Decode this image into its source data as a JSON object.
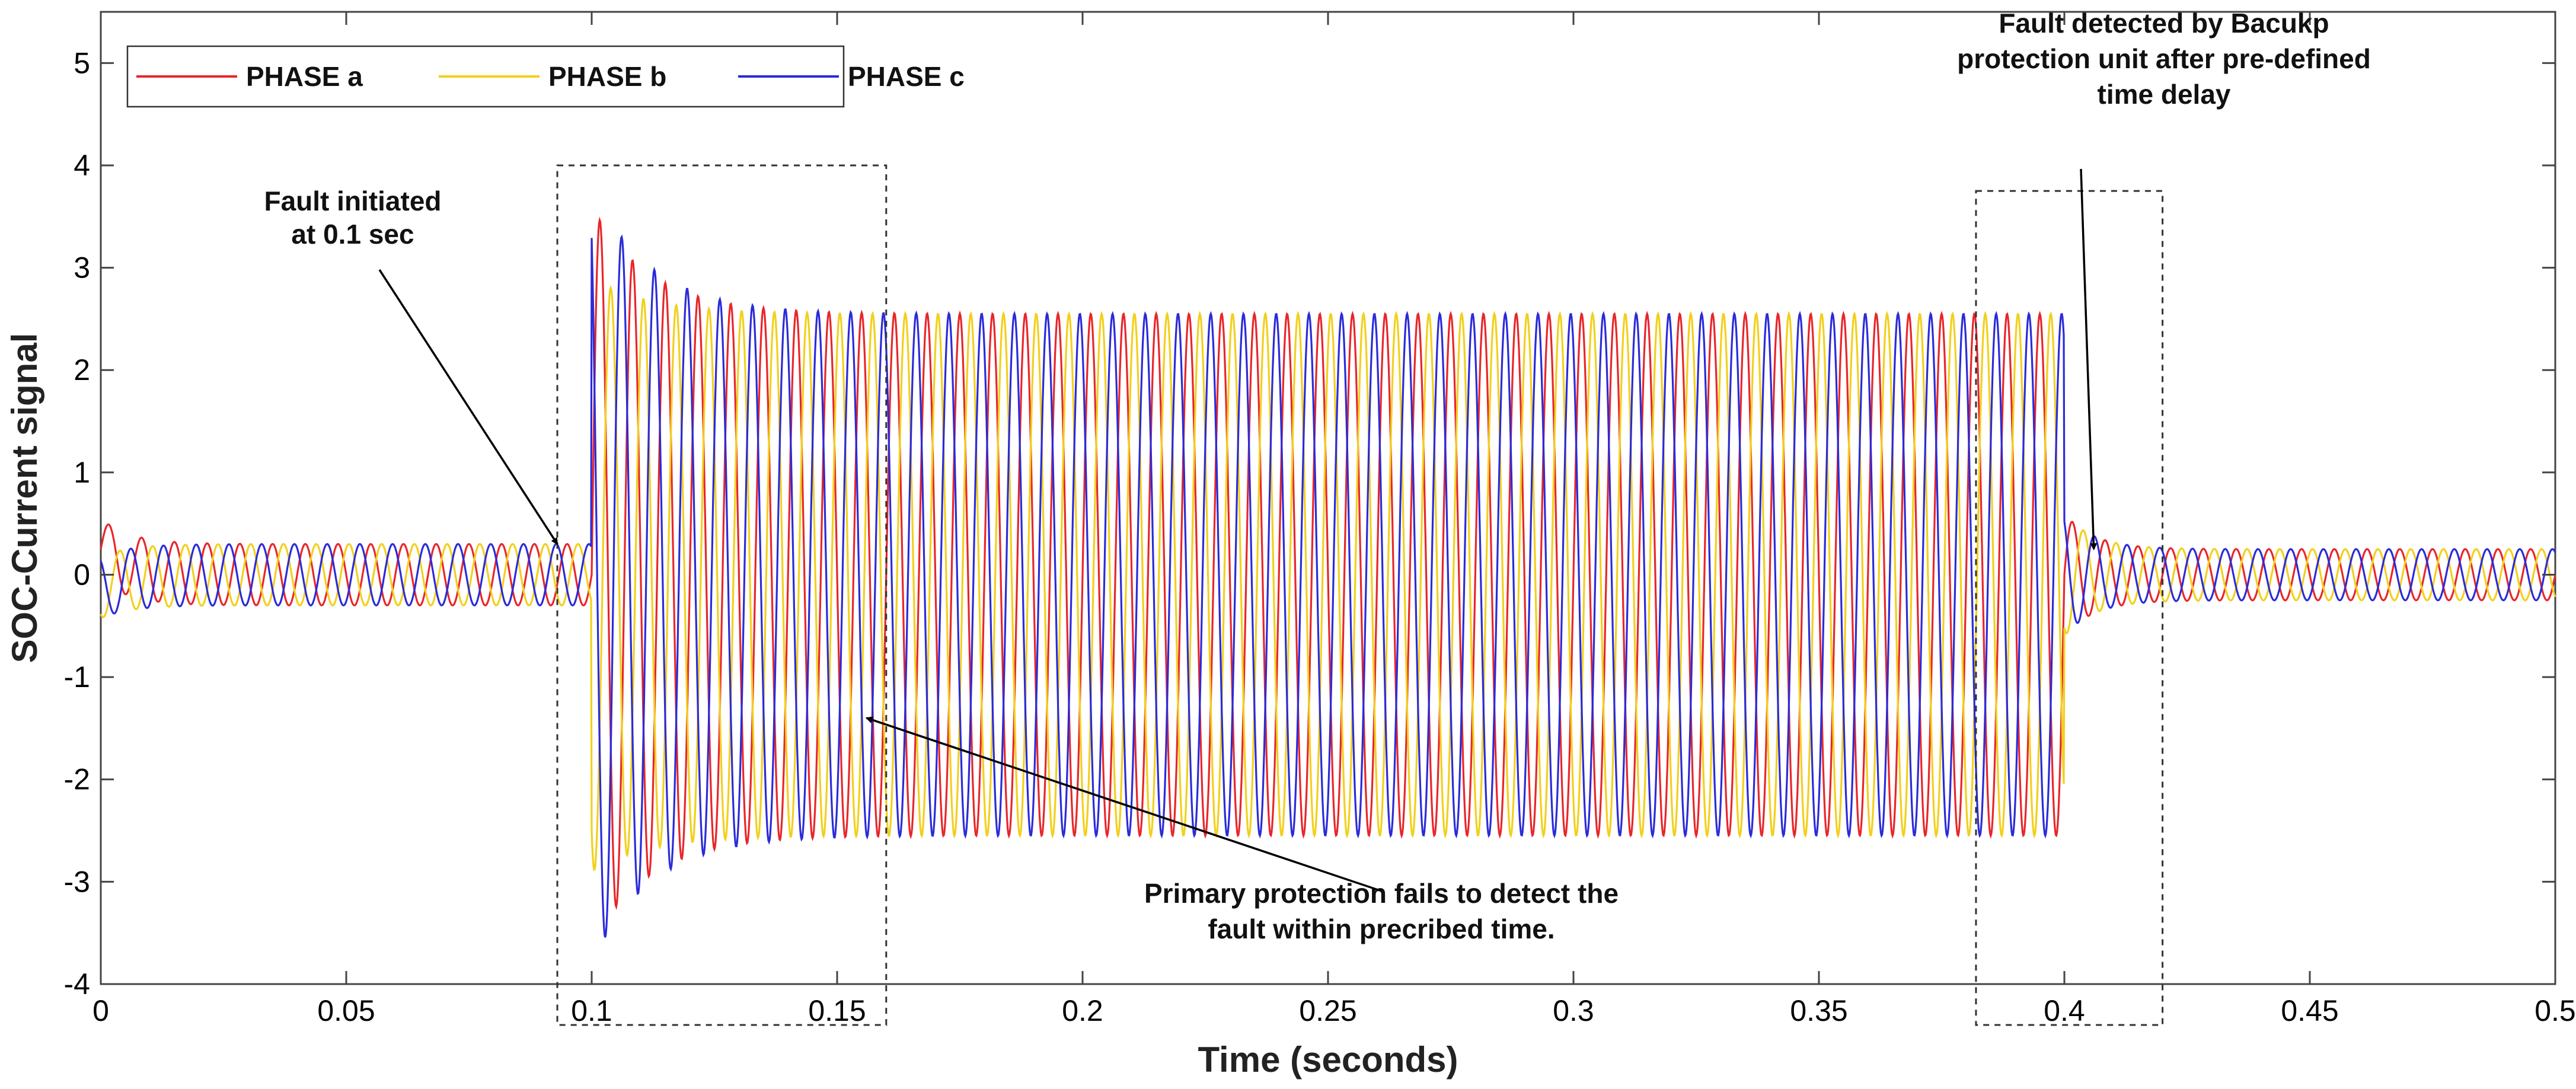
{
  "chart_data": {
    "type": "line",
    "title": "",
    "xlabel": "Time (seconds)",
    "ylabel": "SOC-Current signal",
    "xlim": [
      0,
      0.5
    ],
    "ylim": [
      -4,
      5.5
    ],
    "x_ticks": [
      0,
      0.05,
      0.1,
      0.15,
      0.2,
      0.25,
      0.3,
      0.35,
      0.4,
      0.45,
      0.5
    ],
    "x_tick_labels": [
      "0",
      "0.05",
      "0.1",
      "0.15",
      "0.2",
      "0.25",
      "0.3",
      "0.35",
      "0.4",
      "0.45",
      "0.5"
    ],
    "y_ticks": [
      -4,
      -3,
      -2,
      -1,
      0,
      1,
      2,
      3,
      4,
      5
    ],
    "y_tick_labels": [
      "-4",
      "-3",
      "-2",
      "-1",
      "0",
      "1",
      "2",
      "3",
      "4",
      "5"
    ],
    "grid": false,
    "legend": {
      "placement": "top-left",
      "orientation": "horizontal",
      "entries": [
        "PHASE a",
        "PHASE b",
        "PHASE c"
      ]
    },
    "signal_model": {
      "frequency_hz": 150,
      "pre_fault_amplitude": 0.3,
      "fault_amplitude": 2.55,
      "post_fault_amplitude": 0.25,
      "fault_start_s": 0.1,
      "fault_clear_s": 0.4
    },
    "series": [
      {
        "name": "PHASE a",
        "color": "#e8262b",
        "phase_deg": 0,
        "peak_after_fault": 3.6
      },
      {
        "name": "PHASE b",
        "color": "#f2d01c",
        "phase_deg": -120,
        "peak_after_fault": 2.9
      },
      {
        "name": "PHASE c",
        "color": "#2b2bd9",
        "phase_deg": 120,
        "peak_after_fault": -3.8
      }
    ],
    "annotations": [
      {
        "id": "fault-initiated",
        "lines": [
          "Fault initiated",
          "at 0.1 sec"
        ],
        "target": [
          0.093,
          0.3
        ]
      },
      {
        "id": "primary-fails",
        "lines": [
          "Primary protection fails to detect the",
          "fault within precribed time."
        ],
        "target": [
          0.156,
          -1.4
        ]
      },
      {
        "id": "backup-detect",
        "lines": [
          "Fault detected by Bacukp",
          "protection unit after pre-defined",
          "time delay"
        ],
        "target": [
          0.406,
          0.25
        ]
      }
    ],
    "boxes": [
      {
        "id": "primary-window",
        "x": [
          0.093,
          0.16
        ],
        "y": [
          -4.4,
          4.0
        ]
      },
      {
        "id": "backup-window",
        "x": [
          0.382,
          0.42
        ],
        "y": [
          -4.4,
          3.75
        ]
      }
    ]
  }
}
